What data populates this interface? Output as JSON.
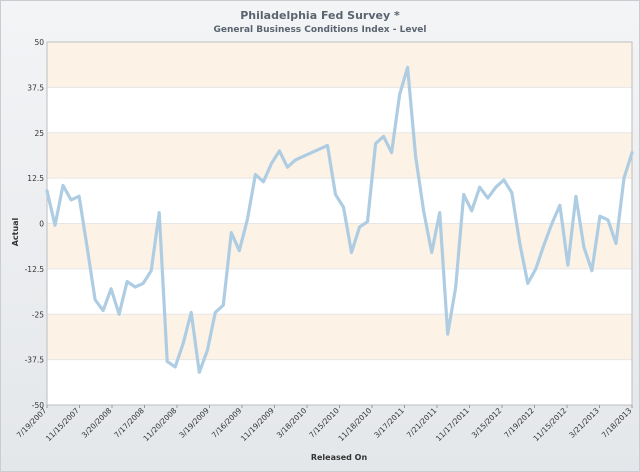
{
  "chart_data": {
    "type": "line",
    "title": "Philadelphia Fed Survey *",
    "subtitle": "General Business Conditions Index - Level",
    "xlabel": "Released On",
    "ylabel": "Actual",
    "ylim": [
      -50,
      50
    ],
    "y_ticks": [
      "50",
      "37.5",
      "25",
      "12.5",
      "0",
      "-12.5",
      "-25",
      "-37.5",
      "-50"
    ],
    "x_ticks": [
      "7/19/2007",
      "11/15/2007",
      "3/20/2008",
      "7/17/2008",
      "11/20/2008",
      "3/19/2009",
      "7/16/2009",
      "11/19/2009",
      "3/18/2010",
      "7/15/2010",
      "11/18/2010",
      "3/17/2011",
      "7/21/2011",
      "11/17/2011",
      "3/15/2012",
      "7/19/2012",
      "11/15/2012",
      "3/21/2013",
      "7/18/2013"
    ],
    "grid": true,
    "series_color": "#aecde3",
    "band_color": "#fdf2e6",
    "values": [
      9,
      -0.5,
      10.5,
      6.5,
      7.5,
      -6.5,
      -21,
      -24,
      -18,
      -25,
      -16,
      -17.5,
      -16.5,
      -13,
      3,
      -38,
      -39.5,
      -33,
      -24.5,
      -41,
      -35,
      -24.5,
      -22.5,
      -2.5,
      -7.5,
      1,
      13.5,
      11.5,
      16.5,
      20,
      15.5,
      17.5,
      18.5,
      19.5,
      20.5,
      21.5,
      8,
      4.5,
      -8,
      -1,
      0.5,
      22,
      24,
      19.5,
      35.5,
      43,
      18.5,
      3.5,
      -8,
      3,
      -30.5,
      -17.5,
      8,
      3.5,
      10,
      7,
      10,
      12,
      8.5,
      -5.5,
      -16.5,
      -12.5,
      -6,
      0,
      5,
      -11.5,
      7.5,
      -6.5,
      -13,
      2,
      1,
      -5.5,
      12.5,
      19.5
    ]
  }
}
